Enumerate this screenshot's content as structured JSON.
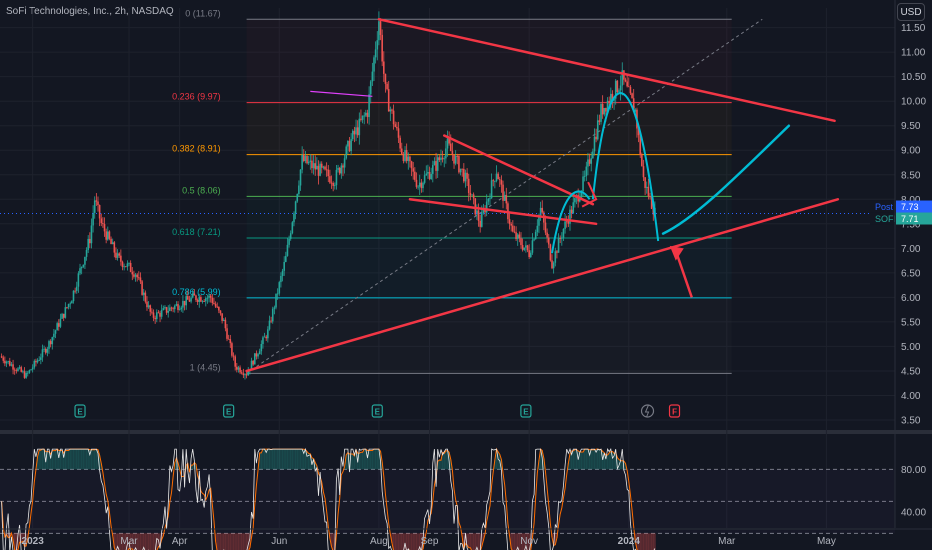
{
  "header": {
    "title": "SoFi Technologies, Inc., 2h, NASDAQ",
    "currency": "USD"
  },
  "colors": {
    "background": "#131722",
    "grid": "#1e222d",
    "up": "#26a69a",
    "down": "#ef5350",
    "trendline": "#f23645",
    "projection": "#00bcd4",
    "stoch_k": "#e8e8e8",
    "stoch_d": "#ff6d00"
  },
  "chart_data": [
    {
      "type": "candlestick",
      "title": "SoFi Technologies, Inc., 2h, NASDAQ",
      "y_scale": "linear",
      "ylim": [
        3.5,
        11.9
      ],
      "y_ticks": [
        "11.50",
        "11.00",
        "10.50",
        "10.00",
        "9.50",
        "9.00",
        "8.50",
        "8.00",
        "7.50",
        "7.00",
        "6.50",
        "6.00",
        "5.50",
        "5.00",
        "4.50",
        "4.00",
        "3.50"
      ],
      "y_tick_values": [
        11.5,
        11.0,
        10.5,
        10.0,
        9.5,
        9.0,
        8.5,
        8.0,
        7.5,
        7.0,
        6.5,
        6.0,
        5.5,
        5.0,
        4.5,
        4.0,
        3.5
      ],
      "x_ticks": [
        "2023",
        "Mar",
        "Apr",
        "Jun",
        "Aug",
        "Sep",
        "Nov",
        "2024",
        "Mar",
        "May"
      ],
      "x_tick_values": [
        "2023-01-01",
        "2023-03-01",
        "2023-04-01",
        "2023-06-01",
        "2023-08-01",
        "2023-09-01",
        "2023-11-01",
        "2024-01-01",
        "2024-03-01",
        "2024-05-01"
      ],
      "xlim": [
        "2022-12-12",
        "2024-06-12"
      ],
      "price_path": [
        [
          "2022-12-12",
          4.8
        ],
        [
          "2022-12-28",
          4.4
        ],
        [
          "2023-01-10",
          5.0
        ],
        [
          "2023-01-25",
          6.0
        ],
        [
          "2023-02-05",
          7.2
        ],
        [
          "2023-02-08",
          8.0
        ],
        [
          "2023-02-12",
          7.5
        ],
        [
          "2023-02-22",
          6.8
        ],
        [
          "2023-03-05",
          6.5
        ],
        [
          "2023-03-15",
          5.6
        ],
        [
          "2023-03-28",
          5.8
        ],
        [
          "2023-04-10",
          6.0
        ],
        [
          "2023-04-20",
          6.0
        ],
        [
          "2023-04-28",
          5.5
        ],
        [
          "2023-05-05",
          4.6
        ],
        [
          "2023-05-12",
          4.45
        ],
        [
          "2023-05-25",
          5.3
        ],
        [
          "2023-06-05",
          6.8
        ],
        [
          "2023-06-15",
          8.8
        ],
        [
          "2023-06-25",
          8.6
        ],
        [
          "2023-07-05",
          8.4
        ],
        [
          "2023-07-15",
          9.2
        ],
        [
          "2023-07-25",
          9.8
        ],
        [
          "2023-08-01",
          11.67
        ],
        [
          "2023-08-05",
          10.2
        ],
        [
          "2023-08-15",
          9.0
        ],
        [
          "2023-08-25",
          8.3
        ],
        [
          "2023-09-05",
          8.7
        ],
        [
          "2023-09-12",
          9.1
        ],
        [
          "2023-09-22",
          8.5
        ],
        [
          "2023-10-02",
          7.5
        ],
        [
          "2023-10-12",
          8.6
        ],
        [
          "2023-10-22",
          7.3
        ],
        [
          "2023-11-01",
          6.9
        ],
        [
          "2023-11-08",
          7.8
        ],
        [
          "2023-11-15",
          6.7
        ],
        [
          "2023-11-22",
          7.4
        ],
        [
          "2023-12-05",
          8.4
        ],
        [
          "2023-12-15",
          9.8
        ],
        [
          "2023-12-28",
          10.45
        ],
        [
          "2024-01-05",
          9.8
        ],
        [
          "2024-01-10",
          8.4
        ],
        [
          "2024-01-14",
          8.0
        ],
        [
          "2024-01-17",
          7.73
        ]
      ],
      "last_price": 7.71,
      "post_price": 7.73,
      "price_labels": [
        {
          "label": "Post",
          "value": "7.73"
        },
        {
          "label": "SOFI",
          "value": "7.71"
        }
      ],
      "fibonacci": [
        {
          "level": "0",
          "price": 11.67,
          "label": "0 (11.67)",
          "color": "#787b86"
        },
        {
          "level": "0.236",
          "price": 9.97,
          "label": "0.236 (9.97)",
          "color": "#f23645"
        },
        {
          "level": "0.382",
          "price": 8.91,
          "label": "0.382 (8.91)",
          "color": "#ff9800"
        },
        {
          "level": "0.5",
          "price": 8.06,
          "label": "0.5 (8.06)",
          "color": "#4caf50"
        },
        {
          "level": "0.618",
          "price": 7.21,
          "label": "0.618 (7.21)",
          "color": "#089981"
        },
        {
          "level": "0.786",
          "price": 5.99,
          "label": "0.786 (5.99)",
          "color": "#00bcd4"
        },
        {
          "level": "1",
          "price": 4.45,
          "label": "1 (4.45)",
          "color": "#787b86"
        }
      ],
      "trendlines": [
        {
          "name": "upper",
          "from": [
            "2023-08-01",
            11.67
          ],
          "to": [
            "2024-05-06",
            9.6
          ]
        },
        {
          "name": "lower",
          "from": [
            "2023-05-12",
            4.5
          ],
          "to": [
            "2024-05-08",
            8.0
          ]
        },
        {
          "name": "channel-top",
          "from": [
            "2023-09-10",
            9.3
          ],
          "to": [
            "2023-12-10",
            7.9
          ]
        },
        {
          "name": "channel-bottom",
          "from": [
            "2023-08-20",
            8.0
          ],
          "to": [
            "2023-12-12",
            7.5
          ]
        }
      ],
      "projection": [
        [
          "2024-01-22",
          7.3
        ],
        [
          "2024-02-10",
          7.6
        ],
        [
          "2024-03-05",
          8.4
        ],
        [
          "2024-04-08",
          9.5
        ]
      ],
      "events": [
        "E",
        "E",
        "E",
        "E",
        "F"
      ],
      "event_dates": [
        "2023-01-30",
        "2023-05-01",
        "2023-07-31",
        "2023-10-30",
        "2024-01-29"
      ]
    },
    {
      "type": "line",
      "name": "stochastic",
      "ylim": [
        25,
        100
      ],
      "y_ticks": [
        "80.00",
        "40.00"
      ],
      "y_tick_values": [
        80,
        40
      ],
      "bands": [
        80,
        50,
        20
      ]
    }
  ]
}
